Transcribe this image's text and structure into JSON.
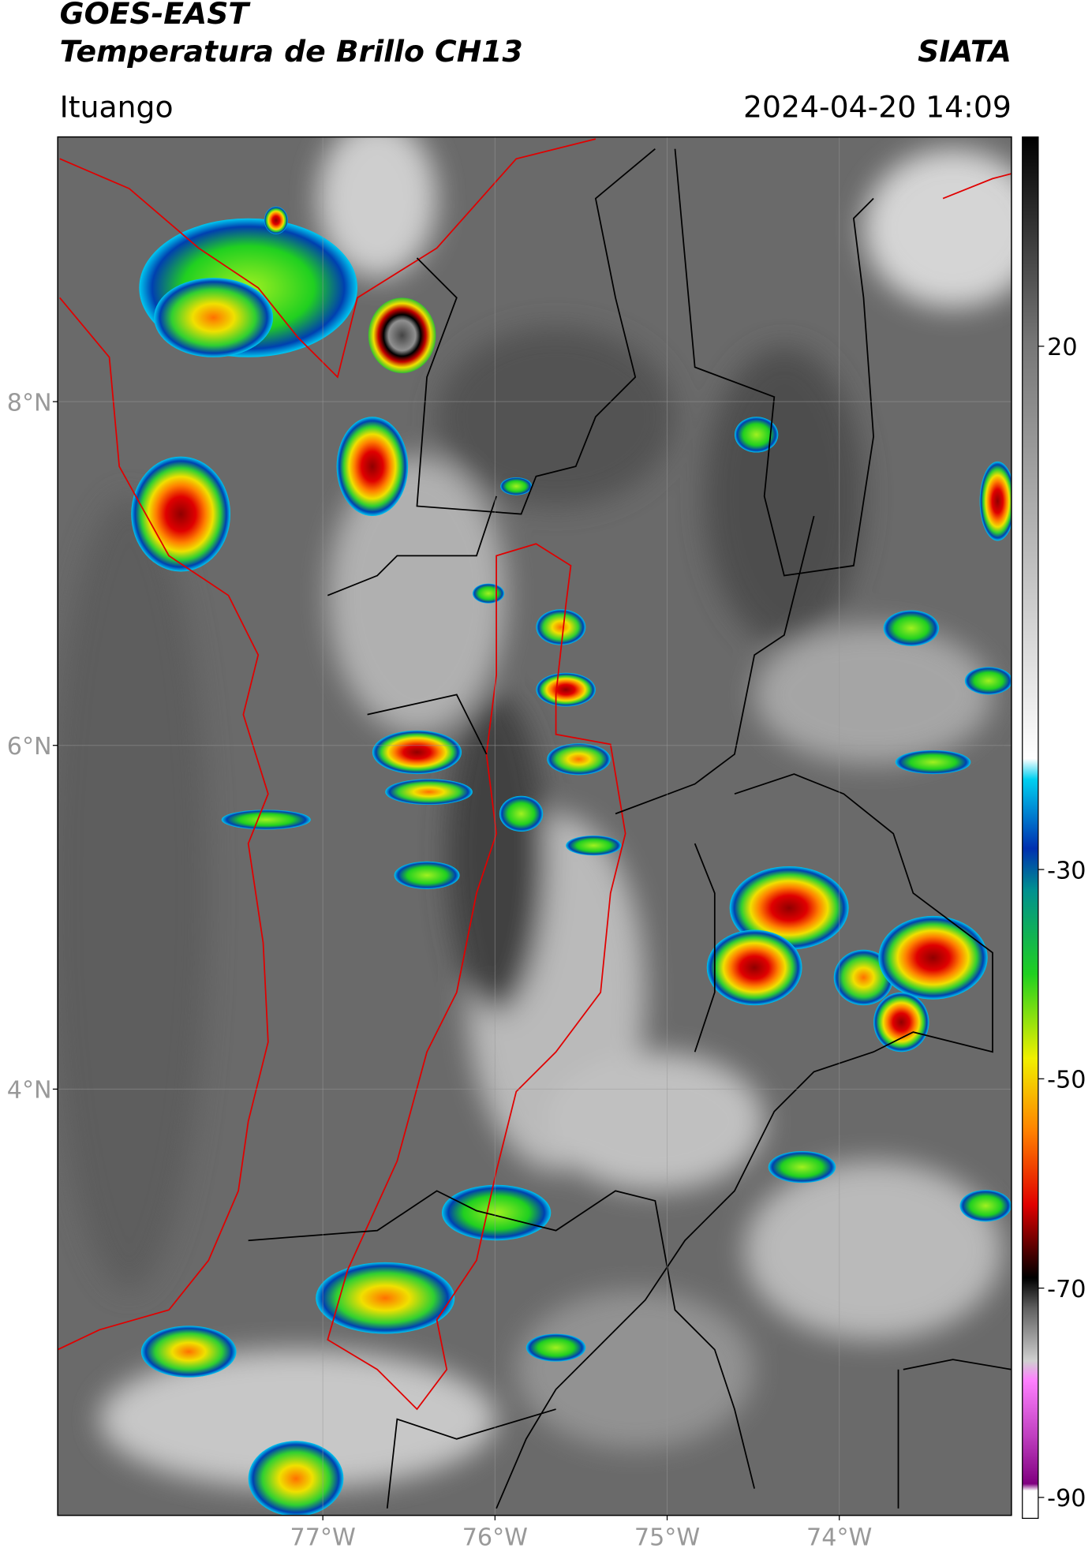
{
  "header": {
    "title": "GOES-EAST",
    "subtitle": "Temperatura de Brillo CH13",
    "source": "SIATA",
    "location": "Ituango",
    "datetime": "2024-04-20 14:09"
  },
  "map": {
    "xlim": [
      -78.54,
      -73.0
    ],
    "ylim": [
      1.52,
      9.54
    ],
    "xticks": [
      {
        "value": -77,
        "label": "77°W"
      },
      {
        "value": -76,
        "label": "76°W"
      },
      {
        "value": -75,
        "label": "75°W"
      },
      {
        "value": -74,
        "label": "74°W"
      }
    ],
    "yticks": [
      {
        "value": 4,
        "label": "4°N"
      },
      {
        "value": 6,
        "label": "6°N"
      },
      {
        "value": 8,
        "label": "8°N"
      }
    ],
    "grid": true,
    "colorbar": {
      "lim": [
        -92,
        40
      ],
      "ticks": [
        20,
        -30,
        -50,
        -70,
        -90
      ]
    }
  }
}
